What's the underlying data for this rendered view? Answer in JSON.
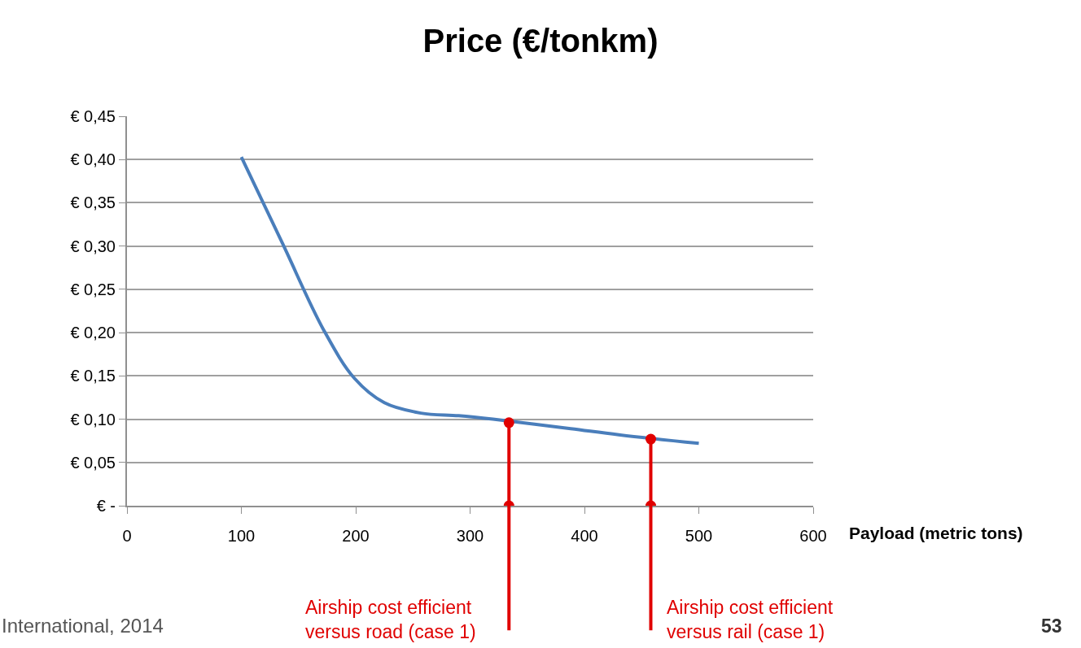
{
  "chart_data": {
    "type": "line",
    "title": "Price (€/tonkm)",
    "xlabel": "Payload (metric tons)",
    "xlim": [
      0,
      600
    ],
    "xticks": [
      0,
      100,
      200,
      300,
      400,
      500,
      600
    ],
    "ylim": [
      0,
      0.45
    ],
    "yticks": [
      {
        "value": 0,
        "label": "€ -"
      },
      {
        "value": 0.05,
        "label": "€ 0,05"
      },
      {
        "value": 0.1,
        "label": "€ 0,10"
      },
      {
        "value": 0.15,
        "label": "€ 0,15"
      },
      {
        "value": 0.2,
        "label": "€ 0,20"
      },
      {
        "value": 0.25,
        "label": "€ 0,25"
      },
      {
        "value": 0.3,
        "label": "€ 0,30"
      },
      {
        "value": 0.35,
        "label": "€ 0,35"
      },
      {
        "value": 0.4,
        "label": "€ 0,40"
      },
      {
        "value": 0.45,
        "label": "€ 0,45"
      }
    ],
    "grid": "y",
    "marker": "none",
    "series": [
      {
        "color": "#4a7ebb",
        "x": [
          100,
          136,
          172,
          199,
          225,
          257,
          290,
          320,
          388,
          430,
          500
        ],
        "values": [
          0.403,
          0.303,
          0.203,
          0.147,
          0.119,
          0.107,
          0.104,
          0.1,
          0.089,
          0.082,
          0.072
        ]
      },
      {
        "type": "scatter",
        "color": "#e00000",
        "marker": "circle",
        "x": [
          334,
          334,
          458,
          458
        ],
        "values": [
          0,
          0.096,
          0,
          0.077
        ]
      }
    ],
    "ref_lines": [
      {
        "axis": "x",
        "value": 334,
        "label": "Airship cost efficient\nversus road (case 1)",
        "color": "#e00000"
      },
      {
        "axis": "x",
        "value": 458,
        "label": "Airship cost efficient\nversus rail (case 1)",
        "color": "#e00000"
      }
    ],
    "annotations": [
      "International, 2014",
      "53"
    ]
  }
}
